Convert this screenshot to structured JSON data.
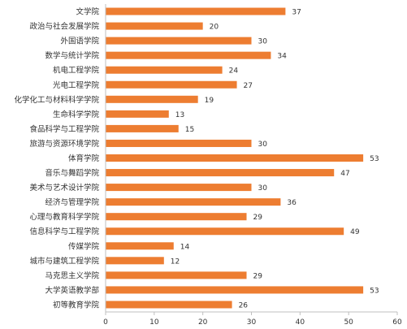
{
  "chart_data": {
    "type": "bar",
    "orientation": "horizontal",
    "categories": [
      "文学院",
      "政治与社会发展学院",
      "外国语学院",
      "数学与统计学院",
      "机电工程学院",
      "光电工程学院",
      "化学化工与材料科学学院",
      "生命科学学院",
      "食品科学与工程学院",
      "旅游与资源环境学院",
      "体育学院",
      "音乐与舞蹈学院",
      "美术与艺术设计学院",
      "经济与管理学院",
      "心理与教育科学学院",
      "信息科学与工程学院",
      "传媒学院",
      "城市与建筑工程学院",
      "马克思主义学院",
      "大学英语教学部",
      "初等教育学院"
    ],
    "values": [
      37,
      20,
      30,
      34,
      24,
      27,
      19,
      13,
      15,
      30,
      53,
      47,
      30,
      36,
      29,
      49,
      14,
      12,
      29,
      53,
      26
    ],
    "xlim": [
      0,
      60
    ],
    "xticks": [
      "0",
      "10",
      "20",
      "30",
      "40",
      "50",
      "60"
    ],
    "bar_color": "#ed7d31",
    "data_labels": true,
    "grid": false
  }
}
